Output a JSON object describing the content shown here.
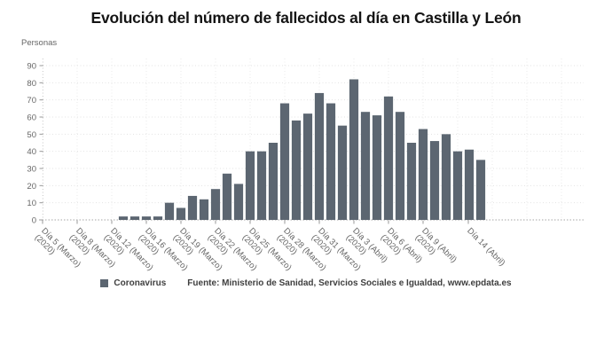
{
  "header": {
    "title": "Evolución del número de fallecidos al día en Castilla y León"
  },
  "chart": {
    "y_axis_title": "Personas",
    "legend": {
      "label": "Coronavirus",
      "marker_color": "#5c6671"
    },
    "source_text": "Fuente: Ministerio de Sanidad, Servicios Sociales e Igualdad, www.epdata.es"
  },
  "chart_data": {
    "type": "bar",
    "title": "Evolución del número de fallecidos al día en Castilla y León",
    "xlabel": "",
    "ylabel": "Personas",
    "ylim": [
      0,
      95
    ],
    "y_ticks": [
      0,
      10,
      20,
      30,
      40,
      50,
      60,
      70,
      80,
      90
    ],
    "grid": true,
    "legend_position": "bottom",
    "x_tick_labels": [
      "Día 5 (Marzo) (2020)",
      "Día 8 (Marzo) (2020)",
      "Día 12 (Marzo) (2020)",
      "Día 16 (Marzo) (2020)",
      "Día 19 (Marzo) (2020)",
      "Día 22 (Marzo) (2020)",
      "Día 25 (Marzo) (2020)",
      "Día 28 (Marzo) (2020)",
      "Día 31 (Marzo) (2020)",
      "Día 3 (Abril) (2020)",
      "Día 6 (Abril) (2020)",
      "Día 9 (Abril) (2020)",
      "Día 14 (Abril)"
    ],
    "series": [
      {
        "name": "Coronavirus",
        "color": "#5c6671",
        "values": [
          2,
          2,
          2,
          2,
          10,
          7,
          14,
          12,
          18,
          27,
          21,
          40,
          40,
          45,
          68,
          58,
          62,
          74,
          68,
          55,
          82,
          63,
          61,
          72,
          63,
          45,
          53,
          46,
          50,
          40,
          41,
          35
        ]
      }
    ]
  }
}
